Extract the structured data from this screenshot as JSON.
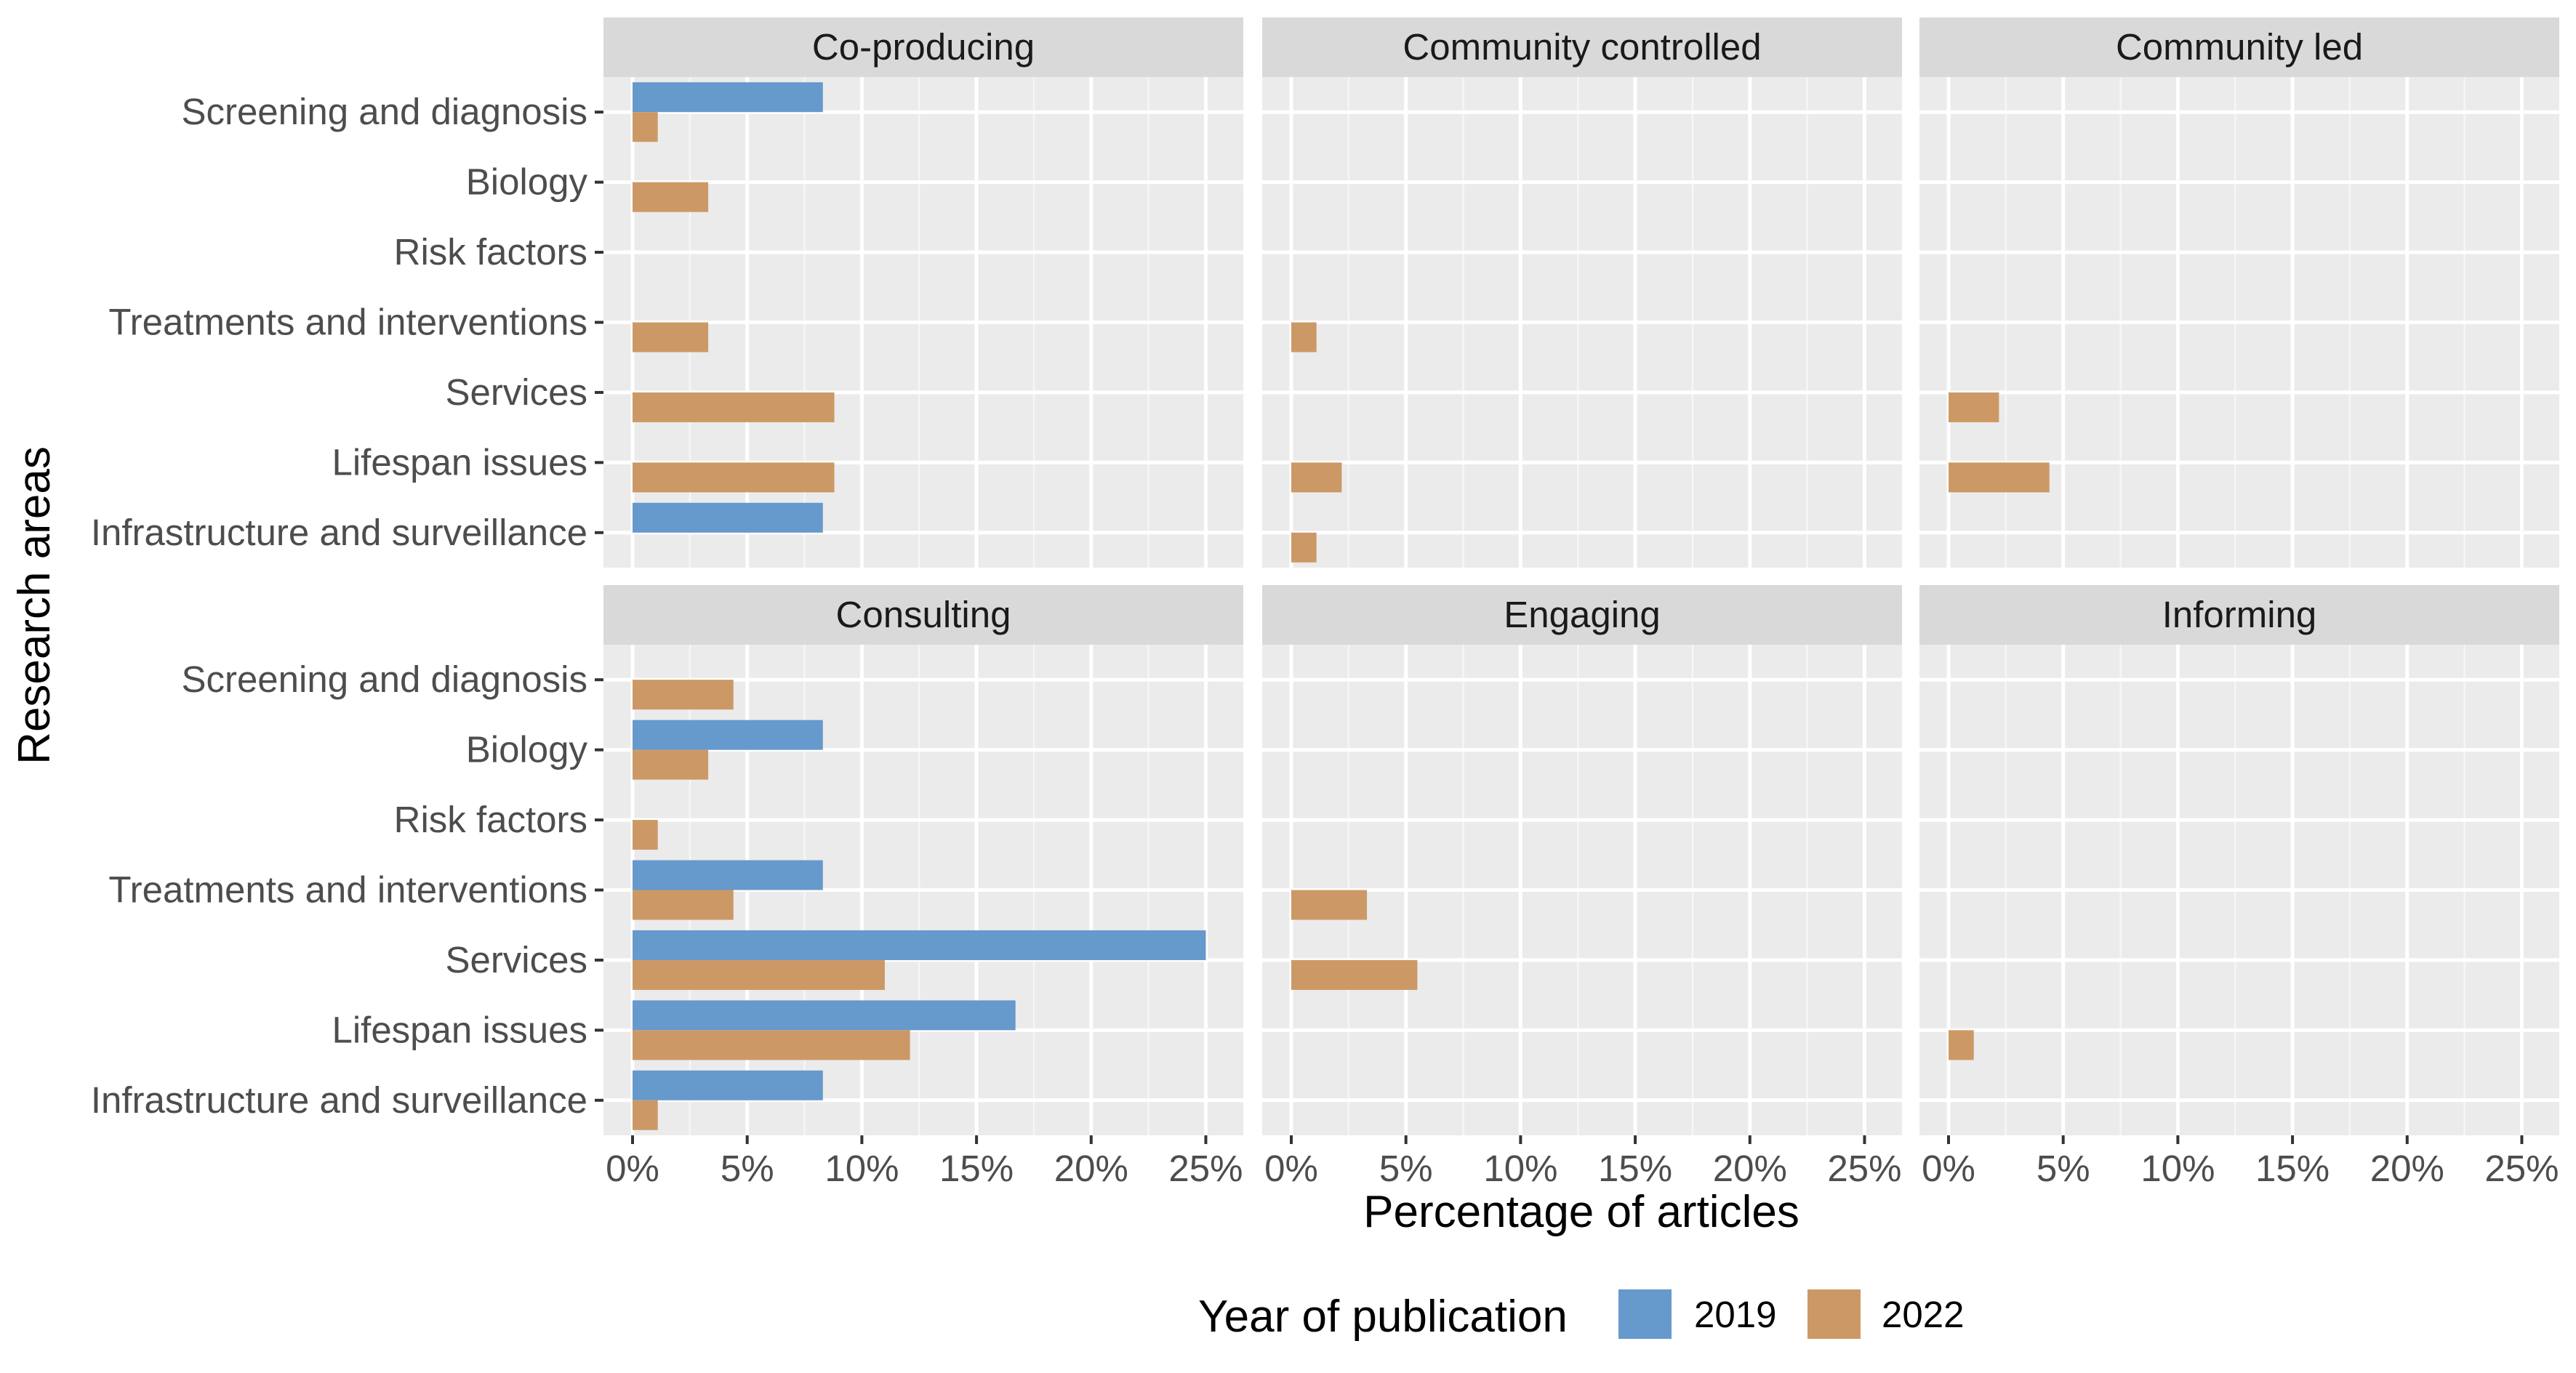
{
  "chart_data": {
    "type": "bar",
    "orientation": "horizontal",
    "xlabel": "Percentage of articles",
    "ylabel": "Research areas",
    "xlim": [
      0,
      26
    ],
    "x_ticks": [
      0,
      5,
      10,
      15,
      20,
      25
    ],
    "x_tick_labels": [
      "0%",
      "5%",
      "10%",
      "15%",
      "20%",
      "25%"
    ],
    "grid": true,
    "legend": {
      "title": "Year of publication",
      "position": "bottom"
    },
    "categories": [
      "Screening and diagnosis",
      "Biology",
      "Risk factors",
      "Treatments and interventions",
      "Services",
      "Lifespan issues",
      "Infrastructure and surveillance"
    ],
    "series": [
      {
        "name": "2019",
        "color": "#6699CC"
      },
      {
        "name": "2022",
        "color": "#CC9966"
      }
    ],
    "facets": [
      {
        "title": "Co-producing",
        "values": {
          "2019": [
            8.3,
            0,
            0,
            0,
            0,
            0,
            8.3
          ],
          "2022": [
            1.1,
            3.3,
            0,
            3.3,
            8.8,
            8.8,
            0
          ]
        }
      },
      {
        "title": "Community controlled",
        "values": {
          "2019": [
            0,
            0,
            0,
            0,
            0,
            0,
            0
          ],
          "2022": [
            0,
            0,
            0,
            1.1,
            0,
            2.2,
            1.1
          ]
        }
      },
      {
        "title": "Community led",
        "values": {
          "2019": [
            0,
            0,
            0,
            0,
            0,
            0,
            0
          ],
          "2022": [
            0,
            0,
            0,
            0,
            2.2,
            4.4,
            0
          ]
        }
      },
      {
        "title": "Consulting",
        "values": {
          "2019": [
            0,
            8.3,
            0,
            8.3,
            25,
            16.7,
            8.3
          ],
          "2022": [
            4.4,
            3.3,
            1.1,
            4.4,
            11,
            12.1,
            1.1
          ]
        }
      },
      {
        "title": "Engaging",
        "values": {
          "2019": [
            0,
            0,
            0,
            0,
            0,
            0,
            0
          ],
          "2022": [
            0,
            0,
            0,
            3.3,
            5.5,
            0,
            0
          ]
        }
      },
      {
        "title": "Informing",
        "values": {
          "2019": [
            0,
            0,
            0,
            0,
            0,
            0,
            0
          ],
          "2022": [
            0,
            0,
            0,
            0,
            0,
            1.1,
            0
          ]
        }
      }
    ]
  }
}
